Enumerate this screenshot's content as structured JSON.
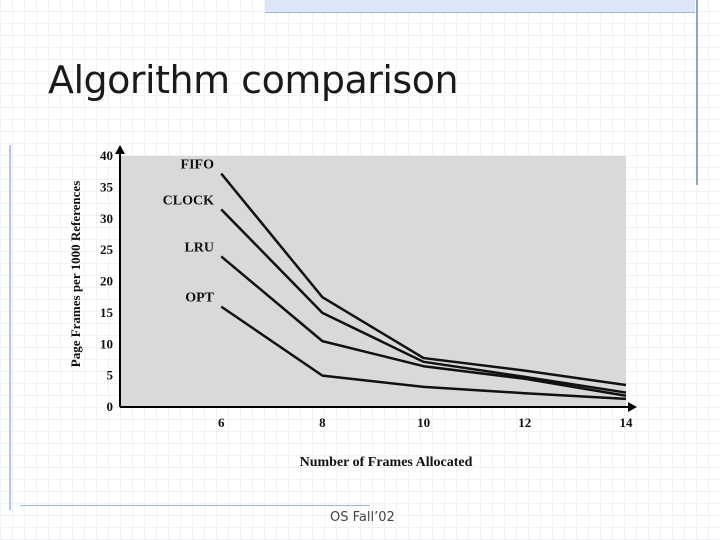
{
  "slide": {
    "title": "Algorithm comparison",
    "footer": "OS Fall’02"
  },
  "chart_data": {
    "type": "line",
    "title": "",
    "xlabel": "Number of Frames Allocated",
    "ylabel": "Page Frames per 1000 References",
    "x": [
      6,
      8,
      10,
      12,
      14
    ],
    "xlim": [
      4,
      14
    ],
    "ylim": [
      0,
      40
    ],
    "xticks": [
      6,
      8,
      10,
      12,
      14
    ],
    "yticks": [
      0,
      5,
      10,
      15,
      20,
      25,
      30,
      35,
      40
    ],
    "grid": false,
    "background": "#d9d9d9",
    "series": [
      {
        "name": "FIFO",
        "values": [
          37.2,
          17.5,
          7.8,
          5.8,
          3.5
        ]
      },
      {
        "name": "CLOCK",
        "values": [
          31.5,
          15.0,
          7.2,
          4.8,
          2.3
        ]
      },
      {
        "name": "LRU",
        "values": [
          24.0,
          10.5,
          6.5,
          4.5,
          1.8
        ]
      },
      {
        "name": "OPT",
        "values": [
          16.0,
          5.0,
          3.2,
          2.2,
          1.3
        ]
      }
    ],
    "line_color": "#111111"
  }
}
